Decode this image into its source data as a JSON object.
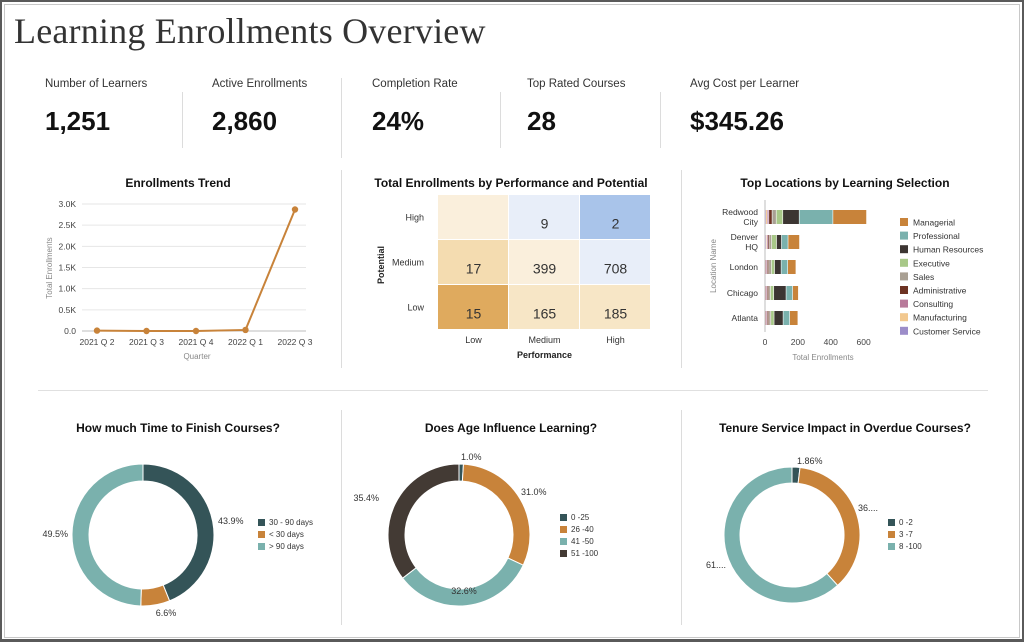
{
  "page": {
    "title": "Learning Enrollments Overview"
  },
  "kpis": [
    {
      "label": "Number of Learners",
      "value": "1,251"
    },
    {
      "label": "Active Enrollments",
      "value": "2,860"
    },
    {
      "label": "Completion Rate",
      "value": "24%"
    },
    {
      "label": "Top Rated Courses",
      "value": "28"
    },
    {
      "label": "Avg Cost per Learner",
      "value": "$345.26"
    }
  ],
  "colors": {
    "orange": "#c8833a",
    "teal": "#7ab1ad",
    "dark_teal": "#345458",
    "dark_brown": "#433a34",
    "grid": "#e6e6e6"
  },
  "chart_data": [
    {
      "type": "line",
      "title": "Enrollments Trend",
      "xlabel": "Quarter",
      "ylabel": "Total Enrollments",
      "categories": [
        "2021 Q 2",
        "2021 Q 3",
        "2021 Q 4",
        "2022 Q 1",
        "2022 Q 3"
      ],
      "values": [
        10,
        0,
        0,
        25,
        2870
      ],
      "ylim": [
        0,
        3000
      ],
      "yticks": [
        "0.0",
        "0.5K",
        "1.0K",
        "1.5K",
        "2.0K",
        "2.5K",
        "3.0K"
      ],
      "color": "#c8833a"
    },
    {
      "type": "heatmap",
      "title": "Total Enrollments by Performance and Potential",
      "xlabel": "Performance",
      "ylabel": "Potential",
      "x_categories": [
        "Low",
        "Medium",
        "High"
      ],
      "y_categories": [
        "High",
        "Medium",
        "Low"
      ],
      "cells": [
        [
          null,
          9,
          2
        ],
        [
          17,
          399,
          708
        ],
        [
          15,
          165,
          185
        ]
      ],
      "cell_labels": [
        [
          "",
          "9",
          "2"
        ],
        [
          "17",
          "399",
          "708"
        ],
        [
          "15",
          "165",
          "185"
        ]
      ],
      "cell_colors": [
        [
          "#faefdc",
          "#e8eef9",
          "#a9c4ea"
        ],
        [
          "#f4dcb0",
          "#faefdc",
          "#e8eef9"
        ],
        [
          "#dfaa5e",
          "#f7e6c6",
          "#f7e6c6"
        ]
      ]
    },
    {
      "type": "bar",
      "stacked": true,
      "orientation": "horizontal",
      "title": "Top Locations by Learning Selection",
      "xlabel": "Total Enrollments",
      "ylabel": "Location Name",
      "xlim": [
        0,
        700
      ],
      "xticks": [
        "0",
        "200",
        "400",
        "600"
      ],
      "categories": [
        "Redwood City",
        "Denver HQ",
        "London",
        "Chicago",
        "Atlanta"
      ],
      "category_lines": [
        [
          "Redwood",
          "City"
        ],
        [
          "Denver",
          "HQ"
        ],
        [
          "London"
        ],
        [
          "Chicago"
        ],
        [
          "Atlanta"
        ]
      ],
      "series": [
        {
          "name": "Customer Service",
          "color": "#9c8dc9",
          "values": [
            5,
            5,
            3,
            3,
            3
          ]
        },
        {
          "name": "Manufacturing",
          "color": "#f2c88f",
          "values": [
            10,
            7,
            5,
            5,
            5
          ]
        },
        {
          "name": "Consulting",
          "color": "#b87a9a",
          "values": [
            10,
            8,
            7,
            7,
            7
          ]
        },
        {
          "name": "Administrative",
          "color": "#6d3323",
          "values": [
            20,
            10,
            10,
            10,
            10
          ]
        },
        {
          "name": "Sales",
          "color": "#a9a093",
          "values": [
            25,
            12,
            15,
            10,
            12
          ]
        },
        {
          "name": "Executive",
          "color": "#a8c888",
          "values": [
            40,
            30,
            20,
            20,
            20
          ]
        },
        {
          "name": "Human Resources",
          "color": "#3c3532",
          "values": [
            100,
            30,
            40,
            75,
            55
          ]
        },
        {
          "name": "Professional",
          "color": "#7ab1ad",
          "values": [
            205,
            40,
            40,
            40,
            40
          ]
        },
        {
          "name": "Managerial",
          "color": "#c8833a",
          "values": [
            205,
            70,
            50,
            35,
            50
          ]
        }
      ],
      "legend_order": [
        "Managerial",
        "Professional",
        "Human Resources",
        "Executive",
        "Sales",
        "Administrative",
        "Consulting",
        "Manufacturing",
        "Customer Service"
      ]
    },
    {
      "type": "pie",
      "donut": true,
      "title": "How much Time to Finish Courses?",
      "labels": [
        "30 - 90 days",
        "< 30 days",
        "> 90 days"
      ],
      "values": [
        43.9,
        6.6,
        49.5
      ],
      "value_labels": [
        "43.9%",
        "6.6%",
        "49.5%"
      ],
      "colors": [
        "#345458",
        "#c8833a",
        "#7ab1ad"
      ]
    },
    {
      "type": "pie",
      "donut": true,
      "title": "Does Age Influence Learning?",
      "labels": [
        "0 -25",
        "26 -40",
        "41 -50",
        "51 -100"
      ],
      "values": [
        1.0,
        31.0,
        32.6,
        35.4
      ],
      "value_labels": [
        "1.0%",
        "31.0%",
        "32.6%",
        "35.4%"
      ],
      "colors": [
        "#345458",
        "#c8833a",
        "#7ab1ad",
        "#433a34"
      ]
    },
    {
      "type": "pie",
      "donut": true,
      "title": "Tenure Service Impact in Overdue Courses?",
      "labels": [
        "0 -2",
        "3 -7",
        "8 -100"
      ],
      "values": [
        1.86,
        36.0,
        61.0
      ],
      "value_labels": [
        "1.86%",
        "36....",
        "61...."
      ],
      "colors": [
        "#345458",
        "#c8833a",
        "#7ab1ad"
      ]
    }
  ]
}
